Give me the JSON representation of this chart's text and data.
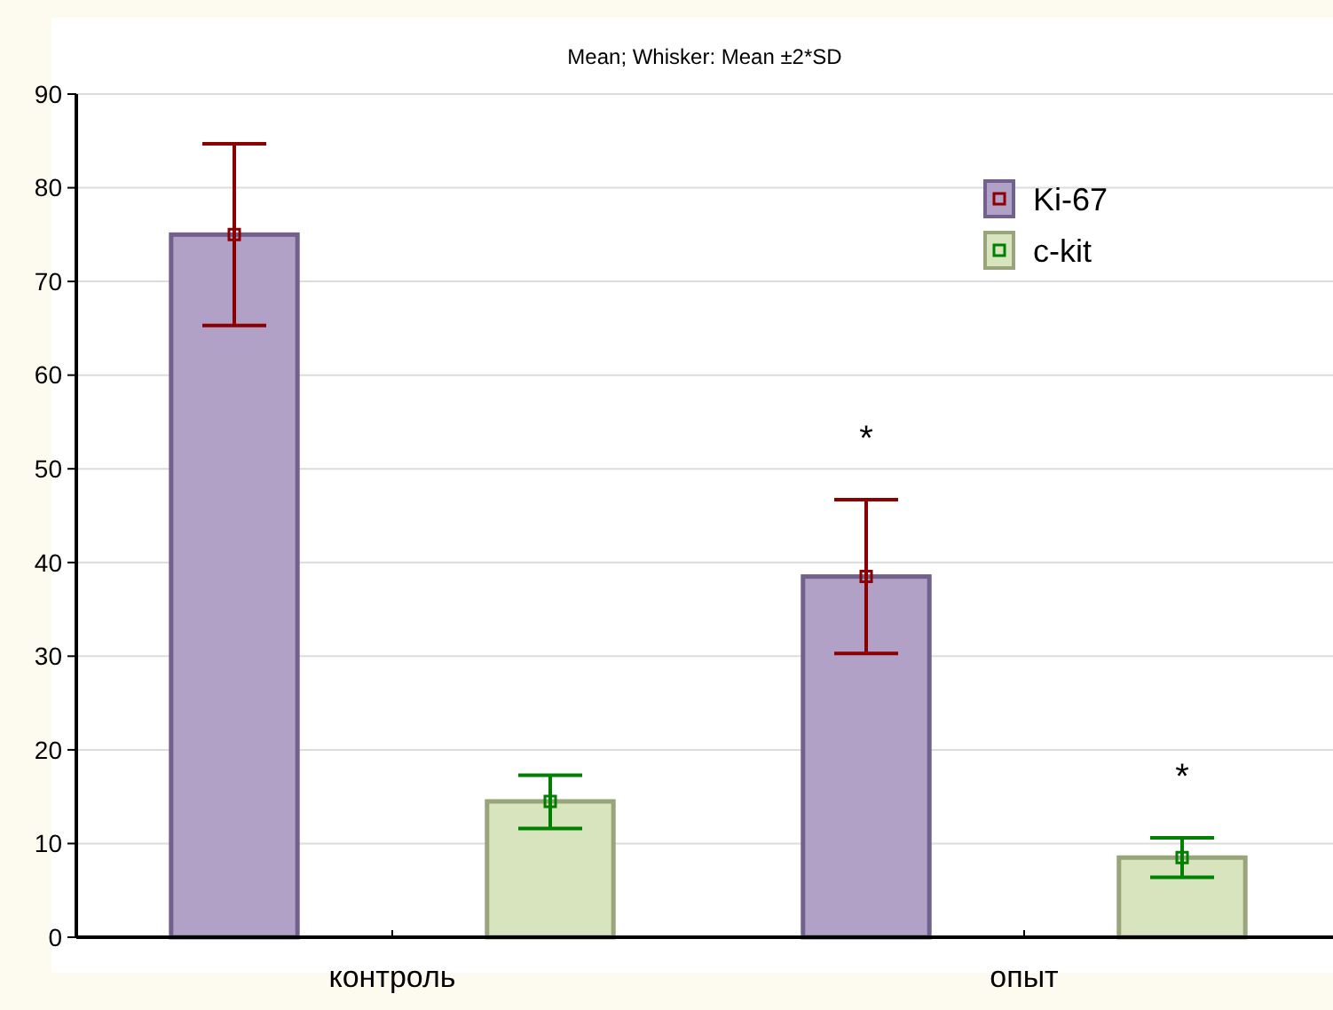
{
  "chart_data": {
    "type": "bar",
    "title": "Mean; Whisker: Mean ±2*SD",
    "categories": [
      "контроль",
      "опыт"
    ],
    "series": [
      {
        "name": "Ki-67",
        "color": "#b1a1c7",
        "values": [
          75,
          38.5
        ],
        "errors": [
          [
            65.3,
            84.7
          ],
          [
            30.3,
            46.7
          ]
        ]
      },
      {
        "name": "c-kit",
        "color": "#d7e4bd",
        "values": [
          14.5,
          8.5
        ],
        "errors": [
          [
            11.6,
            17.3
          ],
          [
            6.4,
            10.6
          ]
        ]
      }
    ],
    "ylim": [
      0,
      90
    ],
    "yticks": [
      0,
      10,
      20,
      30,
      40,
      50,
      60,
      70,
      80,
      90
    ],
    "grid": "y",
    "legend": "top right",
    "marker": "square",
    "annotations": [
      "*",
      "*"
    ]
  }
}
